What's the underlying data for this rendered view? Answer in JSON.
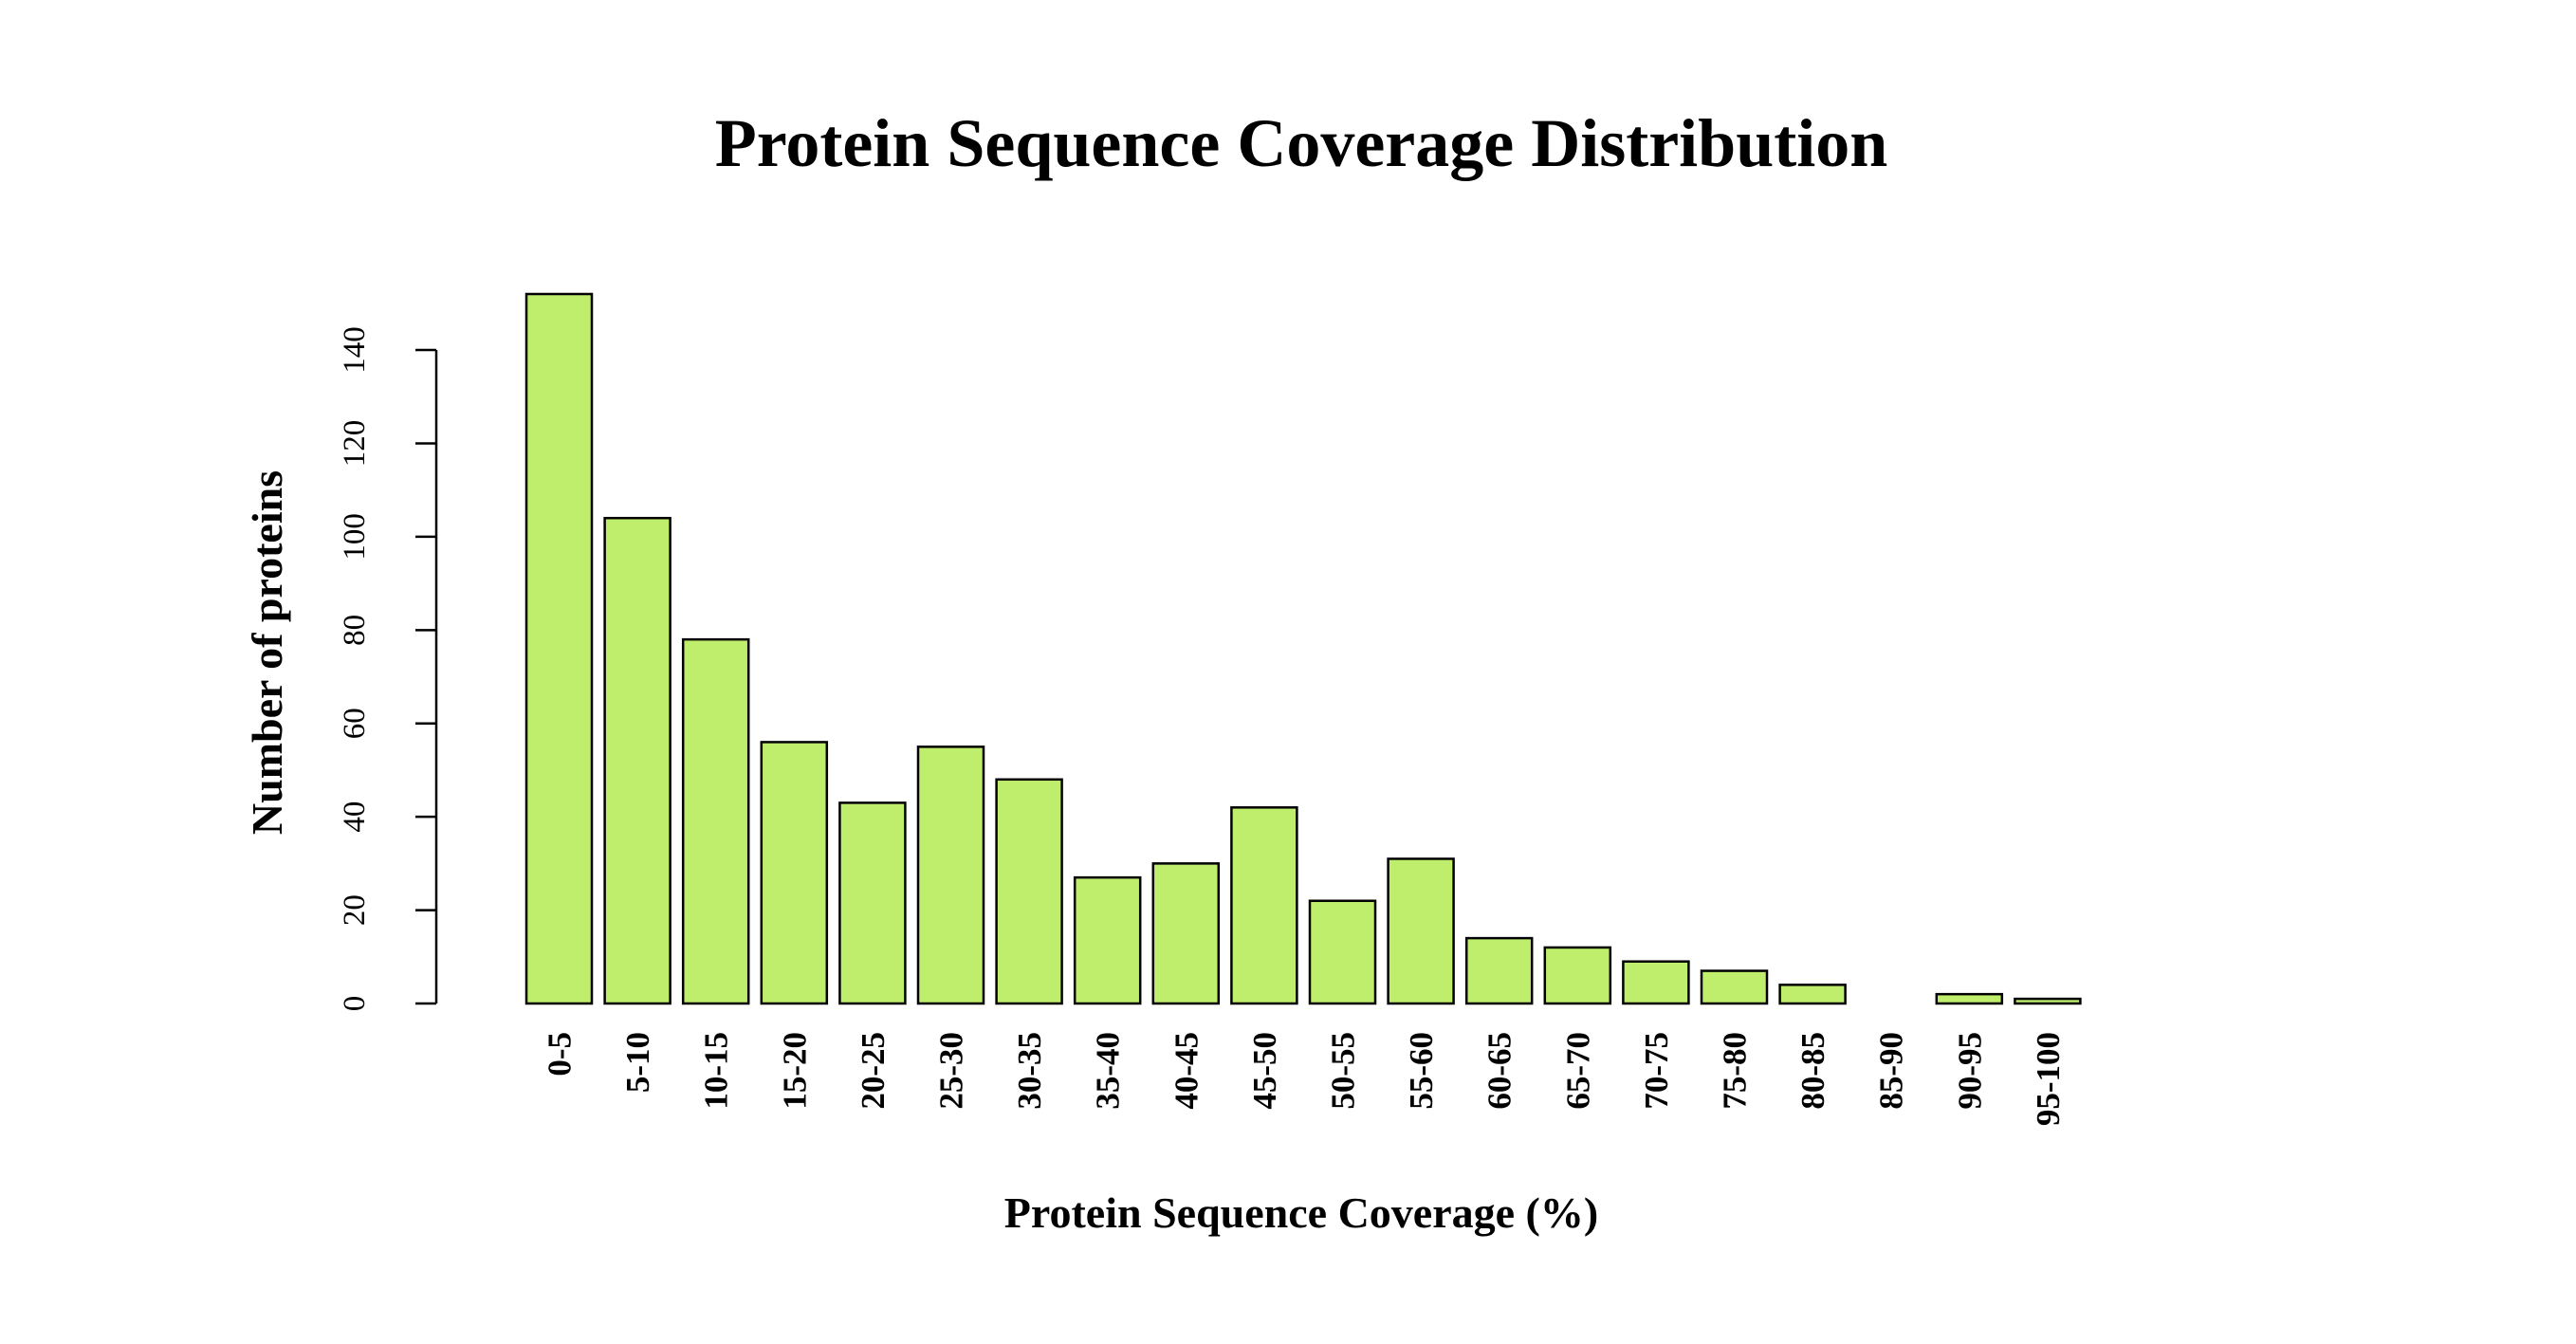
{
  "chart_data": {
    "type": "bar",
    "title": "Protein Sequence Coverage Distribution",
    "xlabel": "Protein Sequence Coverage (%)",
    "ylabel": "Number of proteins",
    "categories": [
      "0-5",
      "5-10",
      "10-15",
      "15-20",
      "20-25",
      "25-30",
      "30-35",
      "35-40",
      "40-45",
      "45-50",
      "50-55",
      "55-60",
      "60-65",
      "65-70",
      "70-75",
      "75-80",
      "80-85",
      "85-90",
      "90-95",
      "95-100"
    ],
    "values": [
      152,
      104,
      78,
      56,
      43,
      55,
      48,
      27,
      30,
      42,
      22,
      31,
      14,
      12,
      9,
      7,
      4,
      0,
      2,
      1
    ],
    "yticks": [
      0,
      20,
      40,
      60,
      80,
      100,
      120,
      140
    ],
    "ylim": [
      0,
      152
    ],
    "bar_color": "#bfee6d",
    "grid": false,
    "legend": "none"
  }
}
